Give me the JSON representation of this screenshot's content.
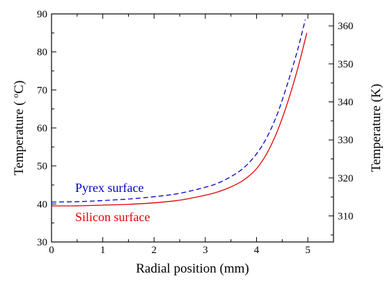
{
  "chart_data": {
    "type": "line",
    "xlabel": "Radial position (mm)",
    "ylabel_left_prefix": "Temperature ( ",
    "ylabel_left_sup": "o",
    "ylabel_left_suffix": "C)",
    "ylabel_right": "Temperature (K)",
    "xlim": [
      0,
      5.5
    ],
    "ylim": [
      30,
      90
    ],
    "ylim_right": [
      303.15,
      363.15
    ],
    "x_ticks": [
      0,
      1,
      2,
      3,
      4,
      5
    ],
    "y_ticks": [
      30,
      40,
      50,
      60,
      70,
      80,
      90
    ],
    "y_right_ticks": [
      310,
      320,
      330,
      340,
      350,
      360
    ],
    "x_tick_labels": [
      "0",
      "1",
      "2",
      "3",
      "4",
      "5"
    ],
    "y_tick_labels": [
      "30",
      "40",
      "50",
      "60",
      "70",
      "80",
      "90"
    ],
    "y_right_tick_labels": [
      "310",
      "320",
      "330",
      "340",
      "350",
      "360"
    ],
    "series": [
      {
        "name": "Pyrex surface",
        "color": "#0000cc",
        "style": "dashed",
        "x": [
          0,
          0.5,
          1,
          1.5,
          2,
          2.5,
          3,
          3.25,
          3.5,
          3.75,
          4,
          4.2,
          4.4,
          4.6,
          4.8,
          4.95
        ],
        "y": [
          40.5,
          40.6,
          40.9,
          41.3,
          41.9,
          42.8,
          44.4,
          45.5,
          47.2,
          49.5,
          53.2,
          57.5,
          63.5,
          71.5,
          80.5,
          88.5
        ]
      },
      {
        "name": "Silicon surface",
        "color": "#dd0000",
        "style": "solid",
        "x": [
          0,
          0.5,
          1,
          1.5,
          2,
          2.5,
          3,
          3.25,
          3.5,
          3.75,
          4,
          4.2,
          4.4,
          4.6,
          4.8,
          4.98
        ],
        "y": [
          39.5,
          39.5,
          39.7,
          39.9,
          40.3,
          41.0,
          42.3,
          43.2,
          44.5,
          46.3,
          49.3,
          53.3,
          59.0,
          66.5,
          75.5,
          85.0
        ]
      }
    ]
  }
}
